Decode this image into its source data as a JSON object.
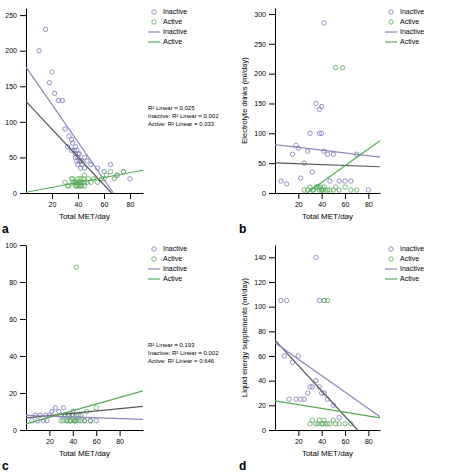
{
  "chart_data": [
    {
      "type": "scatter",
      "title": "a",
      "xlabel": "Total MET/day",
      "xlim": [
        0,
        90
      ],
      "ylim": [
        0,
        260
      ],
      "xticks": [
        20,
        40,
        60,
        80
      ],
      "yticks": [
        0,
        50,
        100,
        150,
        200,
        250
      ],
      "grid": false,
      "legend": "right",
      "annotations": [
        "R² Linear = 0.025",
        "Inactive: R² Linear = 0.002",
        "Active: R² Linear = 0.033"
      ],
      "series": [
        {
          "name": "Inactive",
          "type": "scatter",
          "marker": "circle",
          "color": "#7878b8",
          "x": [
            10,
            15,
            18,
            20,
            22,
            25,
            28,
            30,
            32,
            33,
            35,
            35,
            36,
            37,
            38,
            38,
            38,
            39,
            39,
            40,
            40,
            40,
            41,
            41,
            42,
            42,
            43,
            43,
            45,
            45,
            47,
            50,
            55,
            60,
            65,
            70,
            75,
            80
          ],
          "values": [
            200,
            230,
            155,
            170,
            140,
            130,
            130,
            90,
            65,
            80,
            75,
            60,
            70,
            60,
            50,
            55,
            65,
            45,
            60,
            40,
            50,
            55,
            45,
            55,
            45,
            35,
            40,
            45,
            35,
            50,
            45,
            40,
            35,
            30,
            40,
            25,
            30,
            20
          ]
        },
        {
          "name": "Active",
          "type": "scatter",
          "marker": "circle",
          "color": "#5aaa5a",
          "x": [
            30,
            32,
            33,
            35,
            36,
            36,
            37,
            38,
            38,
            39,
            39,
            40,
            40,
            40,
            41,
            41,
            42,
            42,
            43,
            43,
            44,
            45,
            45,
            45,
            47,
            48,
            50,
            52,
            55,
            58,
            60,
            62,
            65,
            68,
            70,
            75
          ],
          "values": [
            15,
            10,
            10,
            20,
            15,
            20,
            15,
            10,
            15,
            15,
            10,
            10,
            15,
            20,
            10,
            15,
            10,
            20,
            10,
            15,
            20,
            10,
            15,
            25,
            15,
            20,
            15,
            20,
            15,
            20,
            20,
            25,
            30,
            20,
            25,
            30
          ]
        },
        {
          "type": "line",
          "color": "#555555",
          "x": [
            0,
            65.8115
          ],
          "values": [
            128.7661,
            0
          ]
        },
        {
          "name": "Inactive",
          "type": "line",
          "color": "#8888bb",
          "x": [
            0,
            67.2371
          ],
          "values": [
            176.7997,
            0
          ]
        },
        {
          "name": "Active",
          "type": "line",
          "color": "#55aa55",
          "x": [
            0,
            90
          ],
          "values": [
            1.0067,
            31.9549
          ]
        }
      ]
    },
    {
      "type": "scatter",
      "title": "b",
      "xlabel": "Total MET/day",
      "ylabel": "Electrolyte drinks (ml/day)",
      "xlim": [
        0,
        90
      ],
      "ylim": [
        0,
        310
      ],
      "xticks": [
        20,
        40,
        60,
        80
      ],
      "yticks": [
        0,
        50,
        100,
        150,
        200,
        250,
        300
      ],
      "grid": false,
      "legend": "right",
      "series": [
        {
          "name": "Inactive",
          "type": "scatter",
          "marker": "circle",
          "color": "#7878b8",
          "x": [
            5,
            10,
            15,
            18,
            20,
            22,
            25,
            28,
            30,
            32,
            35,
            38,
            38,
            40,
            40,
            42,
            45,
            47,
            50,
            55,
            60,
            65,
            70,
            80,
            42
          ],
          "values": [
            20,
            15,
            65,
            80,
            75,
            25,
            50,
            70,
            100,
            35,
            150,
            140,
            100,
            145,
            100,
            70,
            65,
            20,
            65,
            20,
            20,
            20,
            65,
            5,
            285
          ]
        },
        {
          "name": "Active",
          "type": "scatter",
          "marker": "circle",
          "color": "#5aaa5a",
          "x": [
            25,
            28,
            30,
            32,
            33,
            35,
            36,
            37,
            38,
            39,
            40,
            40,
            41,
            42,
            43,
            45,
            47,
            50,
            52,
            55,
            60,
            65,
            70,
            52,
            58
          ],
          "values": [
            5,
            5,
            10,
            5,
            5,
            10,
            10,
            10,
            5,
            10,
            5,
            5,
            5,
            10,
            5,
            5,
            5,
            5,
            10,
            5,
            10,
            5,
            5,
            210,
            210
          ]
        },
        {
          "type": "line",
          "color": "#555555",
          "x": [
            0,
            90
          ],
          "values": [
            50.6055,
            43.9919
          ]
        },
        {
          "name": "Inactive",
          "type": "line",
          "color": "#8888bb",
          "x": [
            0,
            90
          ],
          "values": [
            81.0527,
            60.1298
          ]
        },
        {
          "name": "Active",
          "type": "line",
          "color": "#55aa55",
          "x": [
            27.268,
            90
          ],
          "values": [
            0,
            87.6998
          ]
        }
      ]
    },
    {
      "type": "scatter",
      "title": "c",
      "xlabel": "Total MET/day",
      "xlim": [
        0,
        100
      ],
      "ylim": [
        0,
        100
      ],
      "xticks": [
        20,
        40,
        60,
        80
      ],
      "yticks": [
        0,
        20,
        40,
        60,
        80,
        100
      ],
      "grid": false,
      "legend": "right",
      "annotations": [
        "R² Linear = 0.193",
        "Inactive: R² Linear = 0.002",
        "Active: R² Linear = 0.646"
      ],
      "series": [
        {
          "name": "Inactive",
          "type": "scatter",
          "marker": "circle",
          "color": "#7878b8",
          "x": [
            5,
            8,
            10,
            12,
            15,
            17,
            18,
            20,
            22,
            25,
            28,
            30,
            32,
            33,
            35,
            37,
            38,
            40,
            40,
            42,
            43,
            45,
            47,
            50,
            55,
            60
          ],
          "values": [
            5,
            8,
            5,
            8,
            5,
            8,
            5,
            8,
            10,
            12,
            10,
            8,
            12,
            8,
            5,
            8,
            5,
            8,
            10,
            5,
            8,
            5,
            8,
            5,
            5,
            5
          ]
        },
        {
          "name": "Active",
          "type": "scatter",
          "marker": "circle",
          "color": "#5aaa5a",
          "x": [
            30,
            32,
            33,
            35,
            36,
            37,
            38,
            39,
            40,
            41,
            42,
            43,
            45,
            47,
            50,
            52,
            55,
            60,
            43
          ],
          "values": [
            5,
            5,
            8,
            5,
            8,
            5,
            5,
            8,
            8,
            5,
            5,
            5,
            8,
            5,
            5,
            10,
            5,
            12,
            88
          ]
        },
        {
          "type": "line",
          "color": "#555555",
          "x": [
            0,
            100
          ],
          "values": [
            6.5128,
            12.8008
          ]
        },
        {
          "name": "Inactive",
          "type": "line",
          "color": "#8888bb",
          "x": [
            0,
            100
          ],
          "values": [
            7.9367,
            5.7862
          ]
        },
        {
          "name": "Active",
          "type": "line",
          "color": "#55aa55",
          "x": [
            0,
            100
          ],
          "values": [
            3.2454,
            21.2074
          ]
        }
      ]
    },
    {
      "type": "scatter",
      "title": "d",
      "xlabel": "Total MET/day",
      "ylabel": "Liquid energy supplements (ml/day)",
      "xlim": [
        0,
        90
      ],
      "ylim": [
        0,
        150
      ],
      "xticks": [
        20,
        40,
        60,
        80
      ],
      "yticks": [
        0,
        20,
        40,
        60,
        80,
        100,
        120,
        140
      ],
      "grid": false,
      "legend": "right",
      "series": [
        {
          "name": "Inactive",
          "type": "scatter",
          "marker": "circle",
          "color": "#7878b8",
          "x": [
            5,
            8,
            10,
            12,
            15,
            18,
            20,
            22,
            25,
            28,
            30,
            32,
            35,
            38,
            40,
            42,
            45,
            50,
            55,
            35,
            38,
            42
          ],
          "values": [
            105,
            60,
            105,
            25,
            55,
            25,
            60,
            25,
            25,
            30,
            35,
            35,
            40,
            35,
            30,
            30,
            25,
            20,
            10,
            140,
            105,
            105
          ]
        },
        {
          "name": "Active",
          "type": "scatter",
          "marker": "circle",
          "color": "#5aaa5a",
          "x": [
            30,
            32,
            35,
            37,
            38,
            40,
            41,
            42,
            43,
            45,
            47,
            50,
            52,
            55,
            60,
            65,
            42,
            45
          ],
          "values": [
            5,
            8,
            5,
            5,
            8,
            5,
            5,
            8,
            5,
            5,
            5,
            8,
            5,
            5,
            5,
            5,
            105,
            105
          ]
        },
        {
          "type": "line",
          "color": "#555555",
          "x": [
            0,
            70.7507
          ],
          "values": [
            72.8421,
            0
          ]
        },
        {
          "name": "Inactive",
          "type": "line",
          "color": "#8888bb",
          "x": [
            0,
            90
          ],
          "values": [
            70.6802,
            10.685
          ]
        },
        {
          "name": "Active",
          "type": "line",
          "color": "#55aa55",
          "x": [
            0,
            90
          ],
          "values": [
            23.5724,
            9.796
          ]
        }
      ]
    }
  ]
}
